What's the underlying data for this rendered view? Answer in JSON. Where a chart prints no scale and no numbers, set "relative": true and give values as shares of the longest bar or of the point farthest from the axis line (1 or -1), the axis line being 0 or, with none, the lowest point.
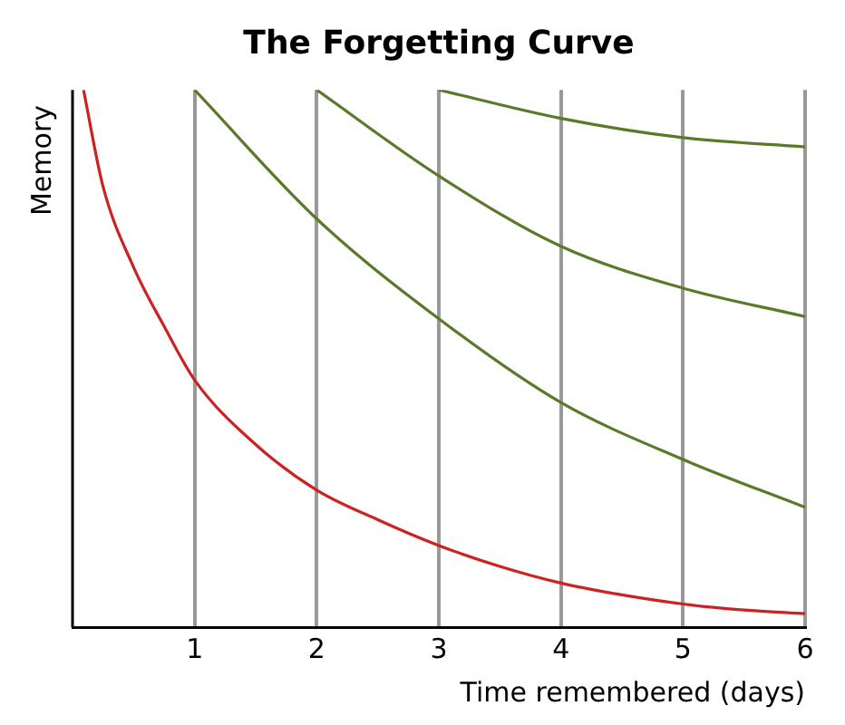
{
  "chart_data": {
    "type": "line",
    "title": "The Forgetting Curve",
    "xlabel": "Time remembered (days)",
    "ylabel": "Memory",
    "relative": true,
    "xlim": [
      0,
      6
    ],
    "xticks": [
      1,
      2,
      3,
      4,
      5,
      6
    ],
    "grid": "x",
    "tick_labels": "x",
    "marker": "none",
    "line_style": "solid",
    "series": [
      {
        "color": "#cc2222",
        "x": [
          0.09,
          0.25,
          0.5,
          0.75,
          1,
          1.5,
          2,
          2.5,
          3,
          3.5,
          4,
          4.5,
          5,
          5.5,
          6
        ],
        "values": [
          1.0,
          0.82,
          0.67,
          0.56,
          0.46,
          0.34,
          0.255,
          0.2,
          0.152,
          0.113,
          0.082,
          0.06,
          0.043,
          0.032,
          0.025
        ]
      },
      {
        "color": "#5a7a2a",
        "x": [
          1,
          2,
          3,
          4,
          5,
          6
        ],
        "values": [
          1.0,
          0.76,
          0.574,
          0.418,
          0.312,
          0.223
        ]
      },
      {
        "color": "#5a7a2a",
        "x": [
          2,
          3,
          4,
          5,
          6
        ],
        "values": [
          1.0,
          0.84,
          0.709,
          0.631,
          0.578
        ]
      },
      {
        "color": "#5a7a2a",
        "x": [
          3,
          4,
          5,
          6
        ],
        "values": [
          1.0,
          0.947,
          0.911,
          0.894
        ]
      }
    ]
  }
}
